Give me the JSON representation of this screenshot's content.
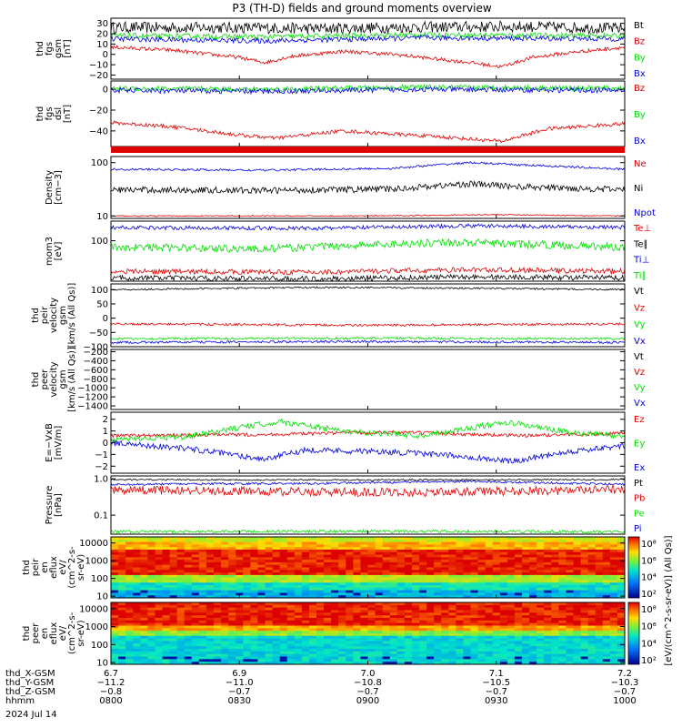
{
  "title": "P3 (TH-D) fields and ground moments overview",
  "colors": {
    "black": "#000000",
    "red": "#e00000",
    "green": "#00e000",
    "blue": "#0000e0"
  },
  "chart_data": [
    {
      "id": "fgs_gsm",
      "type": "line",
      "ylabel": [
        "thd",
        "fgs",
        "gsm",
        "[nT]"
      ],
      "ylim": [
        -24,
        35
      ],
      "yticks": [
        {
          "v": 30,
          "t": "30"
        },
        {
          "v": 20,
          "t": "20"
        },
        {
          "v": 10,
          "t": "10"
        },
        {
          "v": 0,
          "t": "0"
        },
        {
          "v": -10,
          "t": "−10"
        },
        {
          "v": -20,
          "t": "−20"
        }
      ],
      "series": [
        {
          "name": "Bt",
          "color": "#000000",
          "noise": 5.5,
          "keys": [
            [
              0,
              26
            ],
            [
              0.2,
              26
            ],
            [
              0.4,
              25
            ],
            [
              0.55,
              26
            ],
            [
              0.8,
              27
            ],
            [
              1,
              25
            ]
          ]
        },
        {
          "name": "Bz",
          "color": "#e00000",
          "noise": 1.8,
          "keys": [
            [
              0,
              7
            ],
            [
              0.12,
              4
            ],
            [
              0.25,
              -3
            ],
            [
              0.3,
              -8
            ],
            [
              0.35,
              -2
            ],
            [
              0.45,
              3
            ],
            [
              0.55,
              0
            ],
            [
              0.7,
              -8
            ],
            [
              0.76,
              -12
            ],
            [
              0.82,
              -3
            ],
            [
              0.9,
              2
            ],
            [
              1,
              7
            ]
          ]
        },
        {
          "name": "By",
          "color": "#00e000",
          "noise": 2.5,
          "keys": [
            [
              0,
              18
            ],
            [
              0.3,
              17
            ],
            [
              0.6,
              19
            ],
            [
              1,
              18
            ]
          ]
        },
        {
          "name": "Bx",
          "color": "#0000e0",
          "noise": 2.5,
          "keys": [
            [
              0,
              15
            ],
            [
              0.3,
              13
            ],
            [
              0.6,
              16
            ],
            [
              1,
              15
            ]
          ]
        }
      ]
    },
    {
      "id": "fgs_dsl",
      "type": "line",
      "ylabel": [
        "thd",
        "fgs",
        "dsl",
        "[nT]"
      ],
      "ylim": [
        -55,
        8
      ],
      "yticks": [
        {
          "v": 0,
          "t": "0"
        },
        {
          "v": -20,
          "t": "−20"
        },
        {
          "v": -40,
          "t": "−40"
        }
      ],
      "series": [
        {
          "name": "Bz",
          "color": "#e00000",
          "noise": 1.8,
          "keys": [
            [
              0,
              -32
            ],
            [
              0.12,
              -36
            ],
            [
              0.25,
              -44
            ],
            [
              0.32,
              -47
            ],
            [
              0.45,
              -40
            ],
            [
              0.55,
              -43
            ],
            [
              0.65,
              -46
            ],
            [
              0.76,
              -50
            ],
            [
              0.85,
              -38
            ],
            [
              1,
              -33
            ]
          ]
        },
        {
          "name": "By",
          "color": "#00e000",
          "noise": 2.5,
          "keys": [
            [
              0,
              1
            ],
            [
              0.3,
              0
            ],
            [
              0.6,
              2
            ],
            [
              1,
              1
            ]
          ]
        },
        {
          "name": "Bx",
          "color": "#0000e0",
          "noise": 2.5,
          "keys": [
            [
              0,
              -1
            ],
            [
              0.3,
              -2
            ],
            [
              0.6,
              0
            ],
            [
              1,
              -1
            ]
          ]
        }
      ]
    },
    {
      "id": "density",
      "type": "line",
      "ylabel": [
        "Density",
        "[cm−3]"
      ],
      "scale": "log",
      "ylim": [
        9,
        130
      ],
      "yticks": [
        {
          "v": 100,
          "t": "100"
        },
        {
          "v": 10,
          "t": "10"
        }
      ],
      "series": [
        {
          "name": "Ne",
          "color": "#e00000",
          "noise": 0.01,
          "keys": [
            [
              0,
              10
            ],
            [
              0.5,
              10
            ],
            [
              0.75,
              10.6
            ],
            [
              1,
              10
            ]
          ]
        },
        {
          "name": "Ni",
          "color": "#000000",
          "noise": 0.06,
          "keys": [
            [
              0,
              31
            ],
            [
              0.3,
              30
            ],
            [
              0.55,
              32
            ],
            [
              0.7,
              40
            ],
            [
              0.8,
              35
            ],
            [
              1,
              31
            ]
          ]
        },
        {
          "name": "Npot",
          "color": "#0000e0",
          "noise": 0.02,
          "keys": [
            [
              0,
              75
            ],
            [
              0.3,
              72
            ],
            [
              0.55,
              78
            ],
            [
              0.7,
              100
            ],
            [
              0.8,
              90
            ],
            [
              1,
              75
            ]
          ]
        }
      ]
    },
    {
      "id": "mom_temp",
      "type": "line",
      "ylabel": [
        "mom3",
        "[eV]"
      ],
      "scale": "log",
      "ylim": [
        24,
        200
      ],
      "yticks": [
        {
          "v": 100,
          "t": "100"
        }
      ],
      "series": [
        {
          "name": "Te⊥",
          "color": "#e00000",
          "noise": 0.04,
          "keys": [
            [
              0,
              34
            ],
            [
              0.4,
              33
            ],
            [
              0.7,
              36
            ],
            [
              1,
              34
            ]
          ]
        },
        {
          "name": "Te∥",
          "color": "#000000",
          "noise": 0.04,
          "keys": [
            [
              0,
              27
            ],
            [
              0.4,
              26
            ],
            [
              0.7,
              28
            ],
            [
              1,
              27
            ]
          ]
        },
        {
          "name": "Ti⊥",
          "color": "#0000e0",
          "noise": 0.03,
          "keys": [
            [
              0,
              160
            ],
            [
              0.4,
              155
            ],
            [
              0.7,
              170
            ],
            [
              1,
              160
            ]
          ]
        },
        {
          "name": "Ti∥",
          "color": "#00e000",
          "noise": 0.06,
          "keys": [
            [
              0,
              80
            ],
            [
              0.3,
              75
            ],
            [
              0.65,
              95
            ],
            [
              1,
              80
            ]
          ]
        }
      ]
    },
    {
      "id": "peir_velocity",
      "type": "line",
      "ylabel": [
        "thd",
        "peir",
        "velocity",
        "gsm",
        "[km/s (All Qs)]"
      ],
      "ylim": [
        -100,
        120
      ],
      "yticks": [
        {
          "v": 100,
          "t": "100"
        },
        {
          "v": 50,
          "t": "50"
        },
        {
          "v": 0,
          "t": "0"
        },
        {
          "v": -50,
          "t": "−50"
        },
        {
          "v": -100,
          "t": "−100"
        }
      ],
      "series": [
        {
          "name": "Vt",
          "color": "#000000",
          "noise": 3,
          "keys": [
            [
              0,
              100
            ],
            [
              0.4,
              108
            ],
            [
              0.7,
              105
            ],
            [
              1,
              100
            ]
          ]
        },
        {
          "name": "Vz",
          "color": "#e00000",
          "noise": 4,
          "keys": [
            [
              0,
              -20
            ],
            [
              0.5,
              -25
            ],
            [
              1,
              -20
            ]
          ]
        },
        {
          "name": "Vy",
          "color": "#00e000",
          "noise": 4,
          "keys": [
            [
              0,
              -72
            ],
            [
              0.5,
              -70
            ],
            [
              1,
              -72
            ]
          ]
        },
        {
          "name": "Vx",
          "color": "#0000e0",
          "noise": 4,
          "keys": [
            [
              0,
              -85
            ],
            [
              0.5,
              -82
            ],
            [
              1,
              -85
            ]
          ]
        }
      ]
    },
    {
      "id": "peer_velocity",
      "type": "line",
      "ylabel": [
        "thd",
        "peer",
        "velocity",
        "gsm",
        "[km/s (All Qs)]"
      ],
      "ylim": [
        -1480,
        -150
      ],
      "yticks": [
        {
          "v": -200,
          "t": "−200"
        },
        {
          "v": -400,
          "t": "−400"
        },
        {
          "v": -600,
          "t": "−600"
        },
        {
          "v": -800,
          "t": "−800"
        },
        {
          "v": -1000,
          "t": "−1000"
        },
        {
          "v": -1200,
          "t": "−1200"
        },
        {
          "v": -1400,
          "t": "−1400"
        }
      ],
      "series": []
    },
    {
      "id": "efield",
      "type": "line",
      "ylabel": [
        "E=−VxB",
        "[mV/m]"
      ],
      "ylim": [
        -2.6,
        2.6
      ],
      "yticks": [
        {
          "v": 2,
          "t": "2"
        },
        {
          "v": 1,
          "t": "1"
        },
        {
          "v": 0,
          "t": "0"
        },
        {
          "v": -1,
          "t": "−1"
        },
        {
          "v": -2,
          "t": "−2"
        }
      ],
      "series": [
        {
          "name": "Ez",
          "color": "#e00000",
          "noise": 0.15,
          "keys": [
            [
              0,
              0.6
            ],
            [
              0.3,
              0.7
            ],
            [
              0.55,
              0.9
            ],
            [
              0.8,
              0.6
            ],
            [
              1,
              0.8
            ]
          ]
        },
        {
          "name": "Ey",
          "color": "#00e000",
          "noise": 0.25,
          "keys": [
            [
              0,
              0.3
            ],
            [
              0.15,
              0.5
            ],
            [
              0.25,
              1.3
            ],
            [
              0.33,
              1.8
            ],
            [
              0.45,
              1.0
            ],
            [
              0.6,
              0.6
            ],
            [
              0.72,
              1.4
            ],
            [
              0.78,
              1.7
            ],
            [
              0.9,
              0.8
            ],
            [
              1,
              0.6
            ]
          ]
        },
        {
          "name": "Ex",
          "color": "#0000e0",
          "noise": 0.25,
          "keys": [
            [
              0,
              0
            ],
            [
              0.15,
              -0.5
            ],
            [
              0.3,
              -1.4
            ],
            [
              0.38,
              -0.6
            ],
            [
              0.55,
              -0.8
            ],
            [
              0.7,
              -1.2
            ],
            [
              0.78,
              -1.6
            ],
            [
              0.88,
              -0.8
            ],
            [
              1,
              -0.3
            ]
          ]
        }
      ]
    },
    {
      "id": "pressure",
      "type": "line",
      "ylabel": [
        "Pressure",
        "[nPa]"
      ],
      "scale": "log",
      "ylim": [
        0.03,
        1.2
      ],
      "yticks": [
        {
          "v": 1.0,
          "t": "1.0"
        },
        {
          "v": 0.1,
          "t": "0.1"
        }
      ],
      "series": [
        {
          "name": "Pt",
          "color": "#000000",
          "noise": 0.02,
          "keys": [
            [
              0,
              0.95
            ],
            [
              0.5,
              0.93
            ],
            [
              1,
              0.95
            ]
          ]
        },
        {
          "name": "Pb",
          "color": "#e00000",
          "noise": 0.12,
          "keys": [
            [
              0,
              0.5
            ],
            [
              0.3,
              0.45
            ],
            [
              0.6,
              0.42
            ],
            [
              1,
              0.5
            ]
          ]
        },
        {
          "name": "Pe",
          "color": "#00e000",
          "noise": 0.04,
          "keys": [
            [
              0,
              0.035
            ],
            [
              0.5,
              0.036
            ],
            [
              1,
              0.035
            ]
          ]
        },
        {
          "name": "Pi",
          "color": "#0000e0",
          "noise": 0.03,
          "keys": [
            [
              0,
              0.7
            ],
            [
              0.4,
              0.75
            ],
            [
              0.7,
              0.85
            ],
            [
              1,
              0.7
            ]
          ]
        }
      ]
    },
    {
      "id": "peir_eflux",
      "type": "heatmap",
      "ylabel": [
        "thd",
        "peir",
        "en",
        "eflux",
        "eV/",
        "(cm^2-s-",
        "sr-eV)"
      ],
      "scale": "log",
      "ylim": [
        8,
        22000
      ],
      "yticks": [
        {
          "v": 10000,
          "t": "10000"
        },
        {
          "v": 1000,
          "t": "1000"
        },
        {
          "v": 100,
          "t": "100"
        },
        {
          "v": 10,
          "t": "10"
        }
      ]
    },
    {
      "id": "peer_eflux",
      "type": "heatmap",
      "ylabel": [
        "thd",
        "peer",
        "en",
        "eflux",
        "eV/",
        "(cm^2-s-",
        "sr-eV)"
      ],
      "scale": "log",
      "ylim": [
        8,
        22000
      ],
      "yticks": [
        {
          "v": 10000,
          "t": "10000"
        },
        {
          "v": 1000,
          "t": "1000"
        },
        {
          "v": 100,
          "t": "100"
        },
        {
          "v": 10,
          "t": "10"
        }
      ]
    }
  ],
  "colorbar": {
    "label": "[eV/(cm^2-s-sr-eV)] (All Qs)]",
    "ticks": [
      "10⁸",
      "10⁶",
      "10⁴",
      "10²"
    ]
  },
  "xaxis": {
    "rows": [
      {
        "name": "thd_X-GSM",
        "values": [
          "6.7",
          "6.9",
          "7.0",
          "7.1",
          "7.2"
        ]
      },
      {
        "name": "thd_Y-GSM",
        "values": [
          "−11.2",
          "−11.0",
          "−10.8",
          "−10.5",
          "−10.3"
        ]
      },
      {
        "name": "thd_Z-GSM",
        "values": [
          "−0.8",
          "−0.7",
          "−0.7",
          "−0.7",
          "−0.7"
        ]
      },
      {
        "name": "hhmm",
        "values": [
          "0800",
          "0830",
          "0900",
          "0930",
          "1000"
        ]
      }
    ],
    "date": "2024 Jul 14",
    "range": [
      "0800",
      "1000"
    ]
  }
}
